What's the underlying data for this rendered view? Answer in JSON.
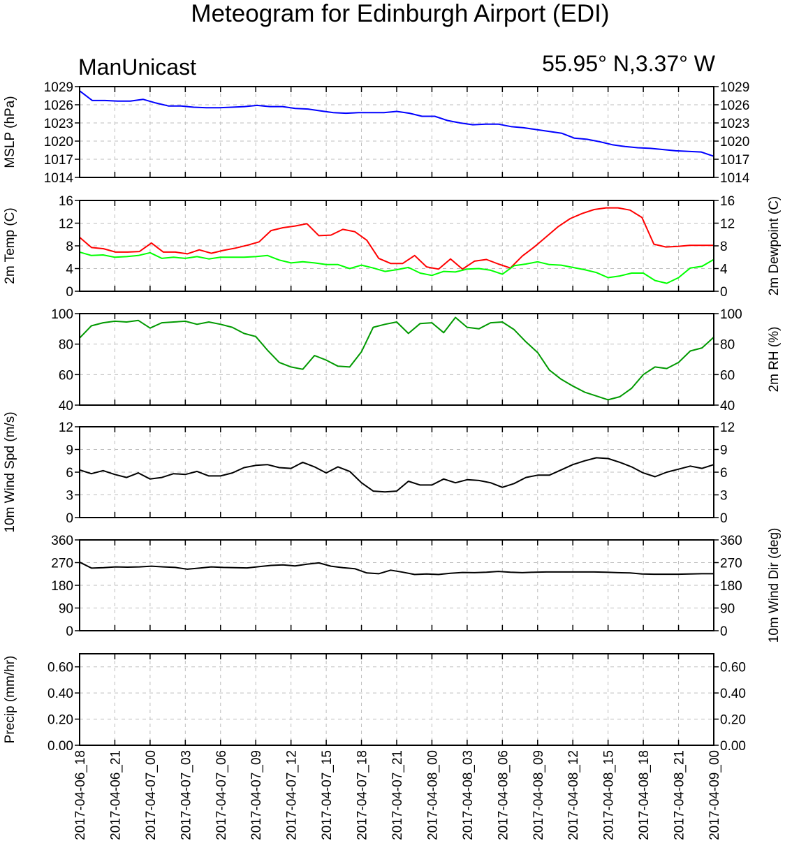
{
  "header": {
    "title": "Meteogram for Edinburgh Airport (EDI)",
    "model": "ManUnicast",
    "location": "55.95° N,3.37° W"
  },
  "chart_data": {
    "type": "line",
    "x_label_interval_hours": 3,
    "x_tick_labels": [
      "2017-04-06_18",
      "2017-04-06_21",
      "2017-04-07_00",
      "2017-04-07_03",
      "2017-04-07_06",
      "2017-04-07_09",
      "2017-04-07_12",
      "2017-04-07_15",
      "2017-04-07_18",
      "2017-04-07_21",
      "2017-04-08_00",
      "2017-04-08_03",
      "2017-04-08_06",
      "2017-04-08_09",
      "2017-04-08_12",
      "2017-04-08_15",
      "2017-04-08_18",
      "2017-04-08_21",
      "2017-04-09_00"
    ],
    "grid": true,
    "panels": [
      {
        "id": "mslp",
        "left_label": "MSLP (hPa)",
        "right_label": "",
        "ylim": [
          1014,
          1029
        ],
        "yticks": [
          "1014",
          "1017",
          "1020",
          "1023",
          "1026",
          "1029"
        ],
        "series": [
          {
            "color": "#0000ff",
            "values": [
              1028.3,
              1026.7,
              1026.7,
              1026.6,
              1026.6,
              1026.9,
              1026.3,
              1025.8,
              1025.8,
              1025.6,
              1025.5,
              1025.5,
              1025.6,
              1025.7,
              1025.9,
              1025.7,
              1025.7,
              1025.4,
              1025.3,
              1025.0,
              1024.7,
              1024.6,
              1024.7,
              1024.7,
              1024.7,
              1024.9,
              1024.6,
              1024.1,
              1024.1,
              1023.4,
              1023.0,
              1022.7,
              1022.8,
              1022.8,
              1022.4,
              1022.2,
              1021.9,
              1021.6,
              1021.3,
              1020.5,
              1020.3,
              1019.9,
              1019.4,
              1019.1,
              1018.9,
              1018.8,
              1018.6,
              1018.4,
              1018.3,
              1018.2,
              1017.5
            ]
          }
        ]
      },
      {
        "id": "temp",
        "left_label": "2m Temp (C)",
        "right_label": "2m Dewpoint (C)",
        "ylim": [
          0,
          16
        ],
        "yticks": [
          "0",
          "4",
          "8",
          "12",
          "16"
        ],
        "series": [
          {
            "color": "#ff0000",
            "values": [
              9.5,
              7.7,
              7.5,
              6.9,
              6.9,
              7.0,
              8.5,
              6.9,
              6.9,
              6.6,
              7.3,
              6.7,
              7.2,
              7.6,
              8.1,
              8.7,
              10.7,
              11.2,
              11.5,
              11.9,
              9.8,
              9.9,
              10.9,
              10.5,
              9.0,
              5.8,
              4.9,
              4.9,
              6.3,
              4.3,
              3.9,
              5.7,
              3.9,
              5.3,
              5.6,
              4.8,
              4.1,
              6.2,
              7.8,
              9.6,
              11.4,
              12.8,
              13.7,
              14.4,
              14.7,
              14.7,
              14.3,
              13.0,
              8.3,
              7.8,
              7.9,
              8.1,
              8.1,
              8.1
            ]
          },
          {
            "color": "#00ff00",
            "values": [
              6.9,
              6.3,
              6.4,
              6.0,
              6.1,
              6.3,
              6.8,
              5.8,
              6.0,
              5.8,
              6.1,
              5.7,
              6.0,
              6.0,
              6.0,
              6.1,
              6.3,
              5.5,
              5.0,
              5.2,
              5.0,
              4.7,
              4.7,
              4.0,
              4.6,
              4.1,
              3.5,
              3.8,
              4.2,
              3.2,
              2.8,
              3.5,
              3.4,
              3.9,
              4.0,
              3.7,
              3.0,
              4.5,
              4.8,
              5.2,
              4.7,
              4.6,
              4.2,
              3.8,
              3.3,
              2.4,
              2.7,
              3.2,
              3.2,
              1.9,
              1.4,
              2.4,
              4.1,
              4.4,
              5.6
            ]
          }
        ]
      },
      {
        "id": "rh",
        "left_label": "",
        "right_label": "2m RH (%)",
        "ylim": [
          40,
          100
        ],
        "yticks": [
          "40",
          "60",
          "80",
          "100"
        ],
        "series": [
          {
            "color": "#009900",
            "values": [
              84,
              92,
              94,
              95,
              94.5,
              95.5,
              90.5,
              94,
              94.5,
              95,
              93,
              94.5,
              93,
              91,
              87,
              85,
              76,
              68,
              65,
              63.5,
              72.5,
              69.5,
              65.5,
              65,
              75,
              91,
              93,
              94.5,
              87,
              93.5,
              94,
              87.5,
              97.5,
              91,
              90,
              94,
              94.5,
              89.5,
              81.5,
              74.5,
              63,
              57,
              52.5,
              48.5,
              46,
              43.5,
              45.5,
              51,
              60,
              65,
              64,
              68,
              75.5,
              77.5,
              84.5
            ]
          }
        ]
      },
      {
        "id": "wspd",
        "left_label": "10m Wind Spd (m/s)",
        "right_label": "",
        "ylim": [
          0,
          12
        ],
        "yticks": [
          "0",
          "3",
          "6",
          "9",
          "12"
        ],
        "series": [
          {
            "color": "#000000",
            "values": [
              6.3,
              5.8,
              6.2,
              5.7,
              5.3,
              5.9,
              5.1,
              5.3,
              5.8,
              5.7,
              6.1,
              5.5,
              5.5,
              5.9,
              6.6,
              6.9,
              7.0,
              6.6,
              6.5,
              7.3,
              6.7,
              5.9,
              6.7,
              6.1,
              4.6,
              3.5,
              3.4,
              3.5,
              4.8,
              4.3,
              4.3,
              5.1,
              4.6,
              5.0,
              4.9,
              4.6,
              4.0,
              4.5,
              5.3,
              5.6,
              5.6,
              6.3,
              7.0,
              7.5,
              7.9,
              7.8,
              7.3,
              6.7,
              5.9,
              5.4,
              6.0,
              6.4,
              6.8,
              6.5,
              7.0
            ]
          }
        ]
      },
      {
        "id": "wdir",
        "left_label": "",
        "right_label": "10m Wind Dir (deg)",
        "ylim": [
          0,
          360
        ],
        "yticks": [
          "0",
          "90",
          "180",
          "270",
          "360"
        ],
        "series": [
          {
            "color": "#000000",
            "values": [
              272,
              248,
              250,
              253,
              252,
              253,
              256,
              253,
              251,
              244,
              248,
              253,
              251,
              250,
              249,
              254,
              259,
              261,
              257,
              264,
              269,
              256,
              250,
              246,
              229,
              226,
              240,
              232,
              223,
              225,
              223,
              228,
              231,
              230,
              232,
              235,
              232,
              230,
              232,
              233,
              233,
              233,
              233,
              233,
              232,
              230,
              229,
              225,
              224,
              224,
              224,
              225,
              226,
              226
            ]
          }
        ]
      },
      {
        "id": "precip",
        "left_label": "Precip (mm/hr)",
        "right_label": "",
        "ylim": [
          0,
          0.7
        ],
        "yticks": [
          "0.00",
          "0.20",
          "0.40",
          "0.60"
        ],
        "series": []
      }
    ]
  }
}
